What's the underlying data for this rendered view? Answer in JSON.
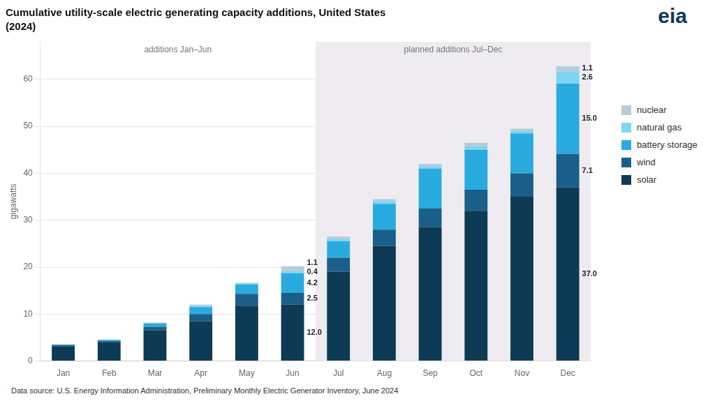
{
  "chart_data": {
    "type": "bar",
    "stacked": true,
    "title": "Cumulative utility-scale electric generating capacity additions, United States",
    "subtitle": "(2024)",
    "ylabel": "gigawatts",
    "categories": [
      "Jan",
      "Feb",
      "Mar",
      "Apr",
      "May",
      "Jun",
      "Jul",
      "Aug",
      "Sep",
      "Oct",
      "Nov",
      "Dec"
    ],
    "series": [
      {
        "name": "solar",
        "color": "#0d3a54",
        "values": [
          3.1,
          4.0,
          6.5,
          8.5,
          11.8,
          12.0,
          19.0,
          24.5,
          28.5,
          32.0,
          35.0,
          37.0
        ],
        "value_labels": [
          null,
          null,
          null,
          null,
          null,
          "12.0",
          null,
          null,
          null,
          null,
          null,
          "37.0"
        ]
      },
      {
        "name": "wind",
        "color": "#1a5f8a",
        "values": [
          0.3,
          0.3,
          0.8,
          1.5,
          2.5,
          2.5,
          3.0,
          3.5,
          4.0,
          4.5,
          5.0,
          7.1
        ],
        "value_labels": [
          null,
          null,
          null,
          null,
          null,
          "2.5",
          null,
          null,
          null,
          null,
          null,
          "7.1"
        ]
      },
      {
        "name": "battery storage",
        "color": "#2aabe0",
        "values": [
          0.1,
          0.2,
          0.7,
          1.5,
          2.0,
          4.2,
          3.5,
          5.5,
          8.5,
          8.5,
          8.5,
          15.0
        ],
        "value_labels": [
          null,
          null,
          null,
          null,
          null,
          "4.2",
          null,
          null,
          null,
          null,
          null,
          "15.0"
        ]
      },
      {
        "name": "natural gas",
        "color": "#7ed4f4",
        "values": [
          0.05,
          0.05,
          0.1,
          0.2,
          0.2,
          0.4,
          0.5,
          0.6,
          0.5,
          0.8,
          0.5,
          2.6
        ],
        "value_labels": [
          null,
          null,
          null,
          null,
          null,
          "0.4",
          null,
          null,
          null,
          null,
          null,
          "2.6"
        ]
      },
      {
        "name": "nuclear",
        "color": "#b8ccd6",
        "values": [
          0.0,
          0.0,
          0.1,
          0.3,
          0.2,
          1.1,
          0.5,
          0.4,
          0.5,
          0.7,
          0.5,
          1.1
        ],
        "value_labels": [
          null,
          null,
          null,
          null,
          null,
          "1.1",
          null,
          null,
          null,
          null,
          null,
          "1.1"
        ]
      }
    ],
    "data_labels": true,
    "ylim": [
      0,
      68
    ],
    "yticks": [
      0,
      10,
      20,
      30,
      40,
      50,
      60
    ],
    "grid": true,
    "legend": "right",
    "annotations": [
      {
        "text": "additions Jan–Jun",
        "from": "Jan",
        "to": "Jun"
      },
      {
        "text": "planned additions Jul–Dec",
        "from": "Jul",
        "to": "Dec",
        "color": "#eeecf0"
      }
    ],
    "logo": "eia",
    "source": "Data source: U.S. Energy Information Administration, Preliminary Monthly Electric Generator Inventory, June 2024"
  }
}
